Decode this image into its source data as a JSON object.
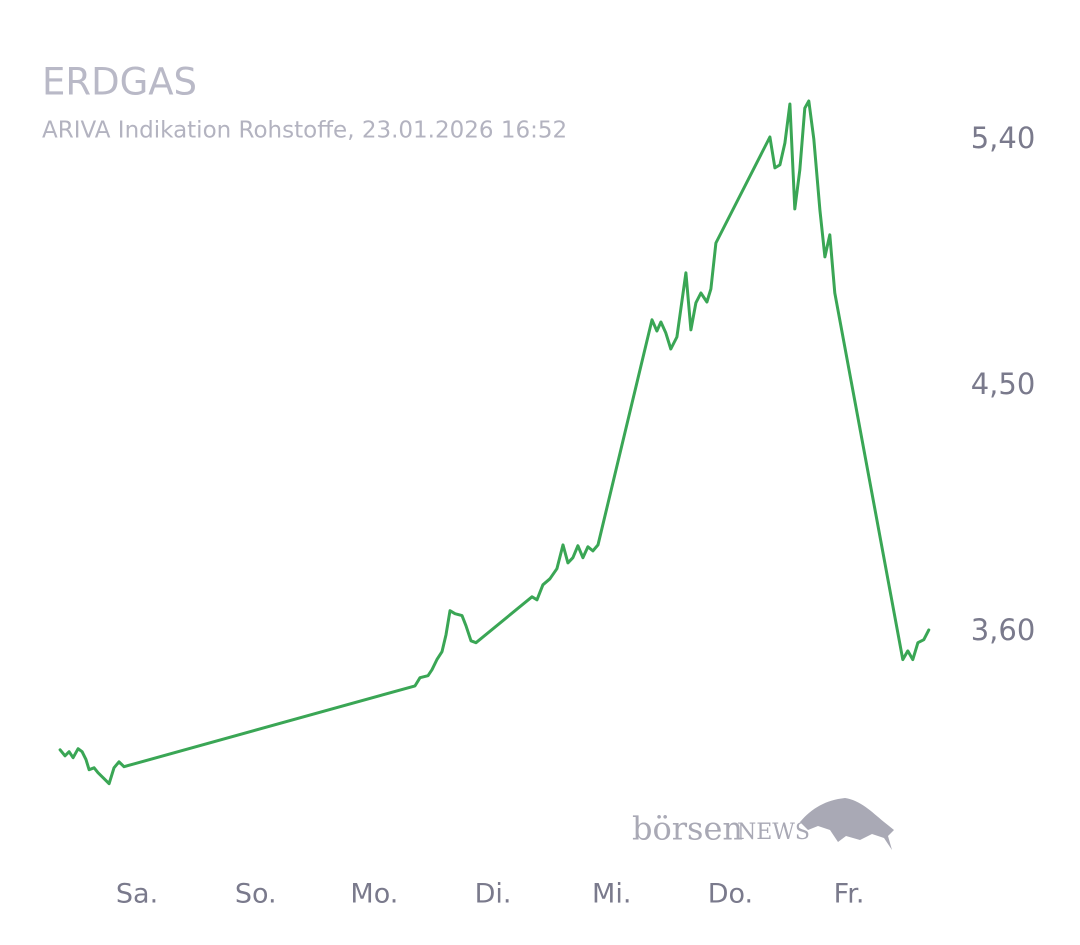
{
  "chart_data": {
    "type": "line",
    "title": "ERDGAS",
    "subtitle": "ARIVA Indikation Rohstoffe, 23.01.2026 16:52",
    "logo": {
      "brand": "börsen",
      "suffix": "NEWS"
    },
    "x": [
      -0.649,
      -0.607,
      -0.573,
      -0.539,
      -0.497,
      -0.463,
      -0.43,
      -0.404,
      -0.362,
      -0.329,
      -0.278,
      -0.236,
      -0.194,
      -0.152,
      -0.11,
      2.342,
      2.384,
      2.452,
      2.485,
      2.527,
      2.57,
      2.603,
      2.637,
      2.679,
      2.738,
      2.772,
      2.814,
      2.856,
      3.328,
      3.37,
      3.42,
      3.479,
      3.538,
      3.589,
      3.631,
      3.673,
      3.715,
      3.757,
      3.799,
      3.841,
      3.884,
      4.339,
      4.381,
      4.414,
      4.456,
      4.498,
      4.549,
      4.625,
      4.667,
      4.709,
      4.751,
      4.802,
      4.836,
      4.878,
      5.333,
      5.375,
      5.417,
      5.459,
      5.501,
      5.543,
      5.585,
      5.627,
      5.661,
      5.703,
      5.754,
      5.796,
      5.838,
      5.88,
      6.453,
      6.495,
      6.537,
      6.58,
      6.63,
      6.672
    ],
    "series": [
      {
        "color": "#3aa655",
        "values": [
          3.168,
          3.146,
          3.161,
          3.139,
          3.172,
          3.161,
          3.132,
          3.095,
          3.102,
          3.084,
          3.062,
          3.044,
          3.102,
          3.124,
          3.106,
          3.402,
          3.432,
          3.439,
          3.461,
          3.498,
          3.527,
          3.589,
          3.677,
          3.666,
          3.659,
          3.622,
          3.567,
          3.56,
          3.728,
          3.717,
          3.772,
          3.794,
          3.831,
          3.918,
          3.852,
          3.871,
          3.915,
          3.871,
          3.911,
          3.896,
          3.918,
          4.742,
          4.701,
          4.734,
          4.694,
          4.635,
          4.679,
          4.914,
          4.705,
          4.804,
          4.84,
          4.807,
          4.855,
          5.023,
          5.411,
          5.298,
          5.309,
          5.389,
          5.532,
          5.148,
          5.29,
          5.517,
          5.543,
          5.404,
          5.144,
          4.972,
          5.053,
          4.84,
          3.498,
          3.53,
          3.498,
          3.56,
          3.571,
          3.607
        ]
      }
    ],
    "xlim": [
      -0.7,
      6.8
    ],
    "xticks": [
      {
        "value": 0,
        "label": "Sa."
      },
      {
        "value": 1,
        "label": "So."
      },
      {
        "value": 2,
        "label": "Mo."
      },
      {
        "value": 3,
        "label": "Di."
      },
      {
        "value": 4,
        "label": "Mi."
      },
      {
        "value": 5,
        "label": "Do."
      },
      {
        "value": 6,
        "label": "Fr."
      }
    ],
    "ylim": [
      2.9,
      5.75
    ],
    "yticks": [
      {
        "value": 3.6,
        "label": "3,60"
      },
      {
        "value": 4.5,
        "label": "4,50"
      },
      {
        "value": 5.4,
        "label": "5,40"
      }
    ],
    "grid": false
  }
}
